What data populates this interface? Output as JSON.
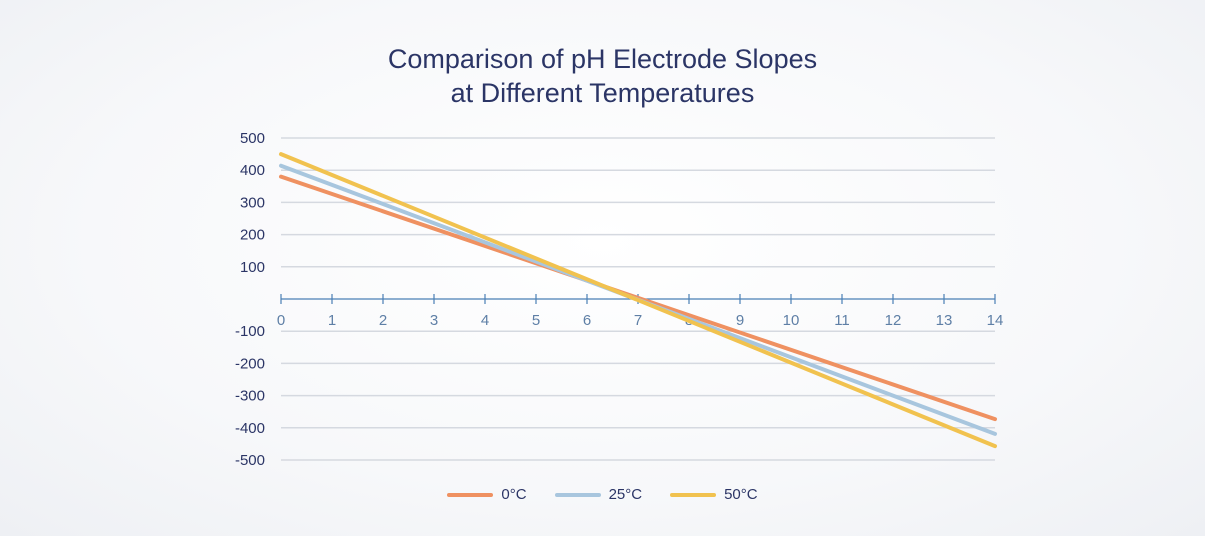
{
  "chart_data": {
    "type": "line",
    "title": "Comparison of pH Electrode Slopes at Different Temperatures",
    "title_lines": [
      "Comparison of pH Electrode Slopes",
      "at Different Temperatures"
    ],
    "xlabel": "",
    "ylabel": "",
    "x": [
      0,
      14
    ],
    "xlim": [
      0,
      14
    ],
    "ylim": [
      -500,
      500
    ],
    "x_ticks": [
      "0",
      "1",
      "2",
      "3",
      "4",
      "5",
      "6",
      "7",
      "8",
      "9",
      "10",
      "11",
      "12",
      "13",
      "14"
    ],
    "y_ticks": [
      "500",
      "400",
      "300",
      "200",
      "100",
      "-100",
      "-200",
      "-300",
      "-400",
      "-500"
    ],
    "grid": true,
    "legend_position": "bottom",
    "series": [
      {
        "name": "0°C",
        "color": "#ef9161",
        "values": [
          380,
          -373
        ]
      },
      {
        "name": "25°C",
        "color": "#a8c6de",
        "values": [
          414,
          -419
        ]
      },
      {
        "name": "50°C",
        "color": "#f1c24f",
        "values": [
          450,
          -457
        ]
      }
    ]
  },
  "colors": {
    "title": "#2b3566",
    "axis": "#4a7fb5",
    "tick_text": "#2b3566",
    "x_tick_text": "#5e7fa6",
    "grid": "#d5d9e0"
  }
}
